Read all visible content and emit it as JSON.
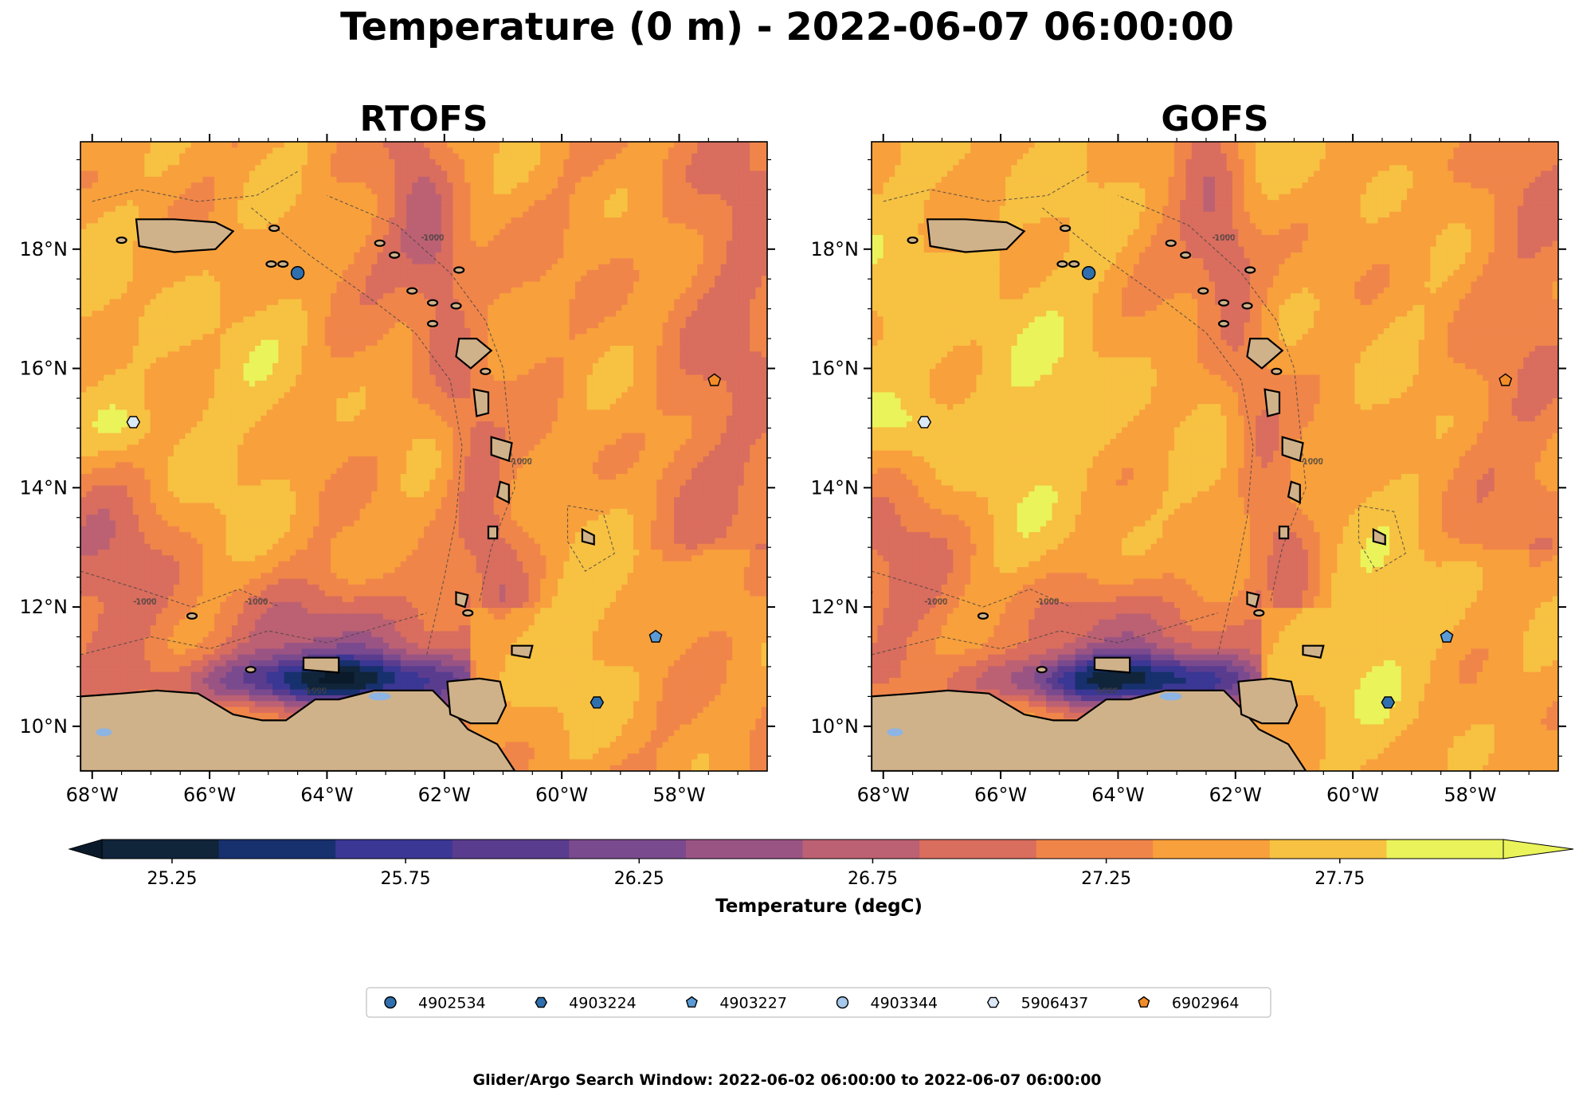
{
  "title": "Temperature (0 m) - 2022-06-07 06:00:00",
  "footnote": "Glider/Argo Search Window: 2022-06-02 06:00:00 to 2022-06-07 06:00:00",
  "chart_data": {
    "type": "heatmap",
    "panels": [
      {
        "id": "rtofs",
        "title": "RTOFS"
      },
      {
        "id": "gofs",
        "title": "GOFS"
      }
    ],
    "x_axis": {
      "range": [
        -68.2,
        -56.5
      ],
      "ticks": [
        -68,
        -66,
        -64,
        -62,
        -60,
        -58
      ],
      "tick_labels": [
        "68°W",
        "66°W",
        "64°W",
        "62°W",
        "60°W",
        "58°W"
      ]
    },
    "y_axis": {
      "range": [
        9.25,
        19.8
      ],
      "ticks": [
        10,
        12,
        14,
        16,
        18
      ],
      "tick_labels": [
        "10°N",
        "12°N",
        "14°N",
        "16°N",
        "18°N"
      ]
    },
    "bathymetry_contour_label": "-1000",
    "colorbar": {
      "label": "Temperature (degC)",
      "levels": [
        25.1,
        25.35,
        25.6,
        25.85,
        26.1,
        26.35,
        26.6,
        26.85,
        27.1,
        27.35,
        27.6,
        27.85
      ],
      "ticks": [
        25.25,
        25.75,
        26.25,
        26.75,
        27.25,
        27.75
      ],
      "tick_labels": [
        "25.25",
        "25.75",
        "26.25",
        "26.75",
        "27.25",
        "27.75"
      ],
      "colors": [
        "#10243a",
        "#17306e",
        "#3b3794",
        "#5a3c8f",
        "#7a4a8e",
        "#9a5484",
        "#bc6173",
        "#d96d5e",
        "#f0854a",
        "#f8a03c",
        "#f7c142",
        "#eaf35a"
      ],
      "extend": "both",
      "under_color": "#0b1a2a",
      "over_color": "#eaf35a"
    },
    "floats": [
      {
        "id": "4902534",
        "marker": "circle",
        "color": "#2f6fae",
        "lon": -64.5,
        "lat": 17.6
      },
      {
        "id": "4903224",
        "marker": "hexagon",
        "color": "#2f6fae",
        "lon": -59.4,
        "lat": 10.4
      },
      {
        "id": "4903227",
        "marker": "pentagon",
        "color": "#5b9bd5",
        "lon": -58.4,
        "lat": 11.5
      },
      {
        "id": "4903344",
        "marker": "circle",
        "color": "#a6c8ea",
        "lon": null,
        "lat": null
      },
      {
        "id": "5906437",
        "marker": "hexagon",
        "color": "#dbe9f7",
        "lon": -67.3,
        "lat": 15.1
      },
      {
        "id": "6902964",
        "marker": "pentagon",
        "color": "#f28c28",
        "lon": -57.4,
        "lat": 15.8
      }
    ],
    "land_color": "#d0b28a",
    "lake_color": "#8db4e2"
  }
}
